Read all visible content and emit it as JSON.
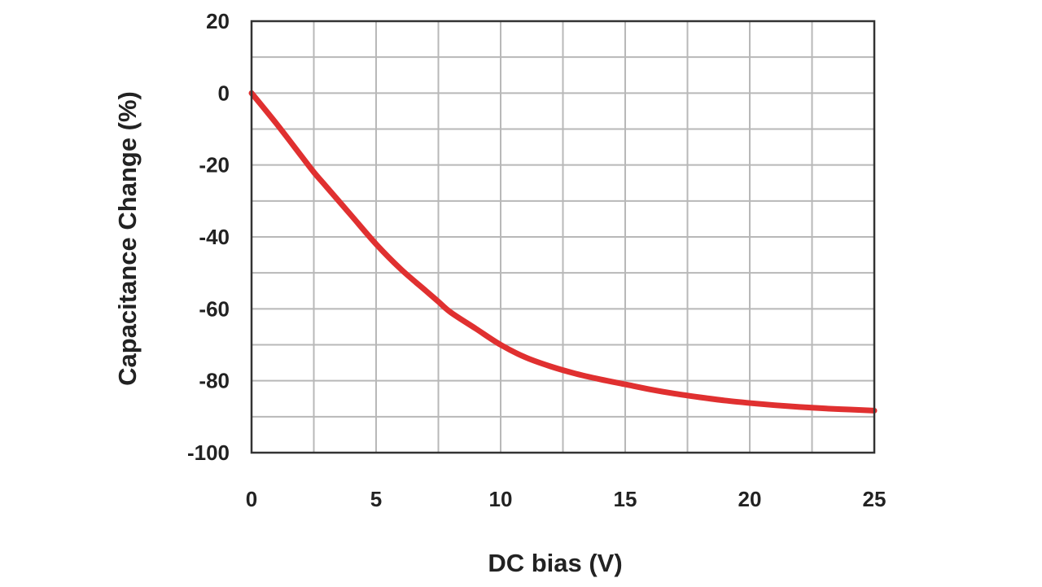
{
  "chart_data": {
    "type": "line",
    "title": "",
    "xlabel": "DC bias (V)",
    "ylabel": "Capacitance Change (%)",
    "xlim": [
      0,
      25
    ],
    "ylim": [
      -100,
      20
    ],
    "x_ticks": [
      0,
      5,
      10,
      15,
      20,
      25
    ],
    "y_ticks": [
      20,
      0,
      -20,
      -40,
      -60,
      -80,
      -100
    ],
    "grid": true,
    "legend": "none",
    "series": [
      {
        "color": "#e03030",
        "x": [
          0,
          1,
          2,
          2.5,
          3,
          4,
          5,
          6,
          7,
          7.5,
          8,
          9,
          10,
          11,
          12,
          13,
          14,
          15,
          16,
          17,
          18,
          19,
          20,
          21,
          22,
          23,
          24,
          25
        ],
        "y": [
          0,
          -8.5,
          -17.5,
          -22,
          -26,
          -34,
          -42,
          -49,
          -55,
          -58,
          -61,
          -65.5,
          -70,
          -73.5,
          -76,
          -78,
          -79.6,
          -81,
          -82.4,
          -83.6,
          -84.6,
          -85.5,
          -86.2,
          -86.8,
          -87.3,
          -87.7,
          -88,
          -88.3
        ]
      }
    ]
  },
  "colors": {
    "line": "#e03030",
    "grid": "#b8b8b8",
    "frame": "#333333",
    "text": "#222222"
  }
}
